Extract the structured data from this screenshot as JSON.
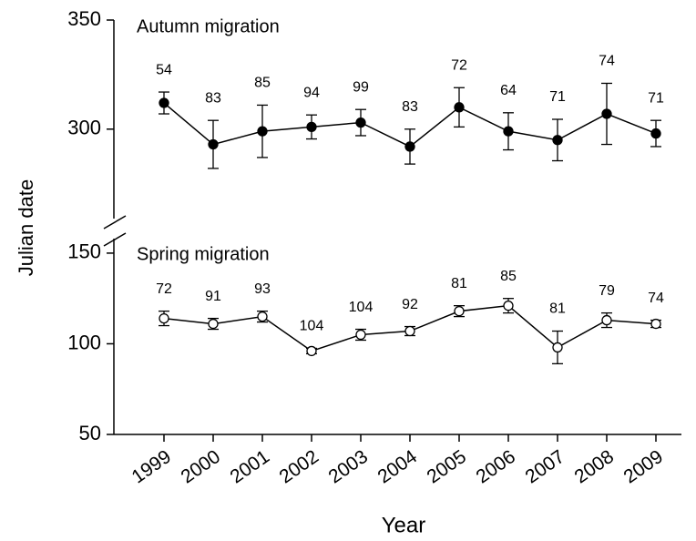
{
  "chart_data": [
    {
      "type": "line",
      "title": "Autumn migration",
      "ylabel": "Julian date",
      "ylim": [
        259,
        350
      ],
      "yticks": [
        300,
        350
      ],
      "marker_fill": "#000000",
      "color": "#000000",
      "values": [
        312,
        293,
        299,
        301,
        303,
        292,
        310,
        299,
        295,
        307,
        298
      ],
      "errors": [
        5,
        11,
        12,
        5.5,
        6,
        8,
        9,
        8.5,
        9.5,
        14,
        6
      ],
      "sample_sizes": [
        54,
        83,
        85,
        94,
        99,
        83,
        72,
        64,
        71,
        74,
        71
      ]
    },
    {
      "type": "line",
      "title": "Spring migration",
      "xlabel": "Year",
      "categories": [
        "1999",
        "2000",
        "2001",
        "2002",
        "2003",
        "2004",
        "2005",
        "2006",
        "2007",
        "2008",
        "2009"
      ],
      "ylim": [
        50,
        158
      ],
      "yticks": [
        50,
        100,
        150
      ],
      "marker_fill": "#ffffff",
      "color": "#000000",
      "values": [
        114,
        111,
        115,
        96,
        105,
        107,
        118,
        121,
        98,
        113,
        111
      ],
      "errors": [
        4,
        3,
        3,
        1.5,
        3,
        2.5,
        3,
        4,
        9,
        4,
        2
      ],
      "sample_sizes": [
        72,
        91,
        93,
        104,
        104,
        92,
        81,
        85,
        81,
        79,
        74
      ]
    }
  ]
}
